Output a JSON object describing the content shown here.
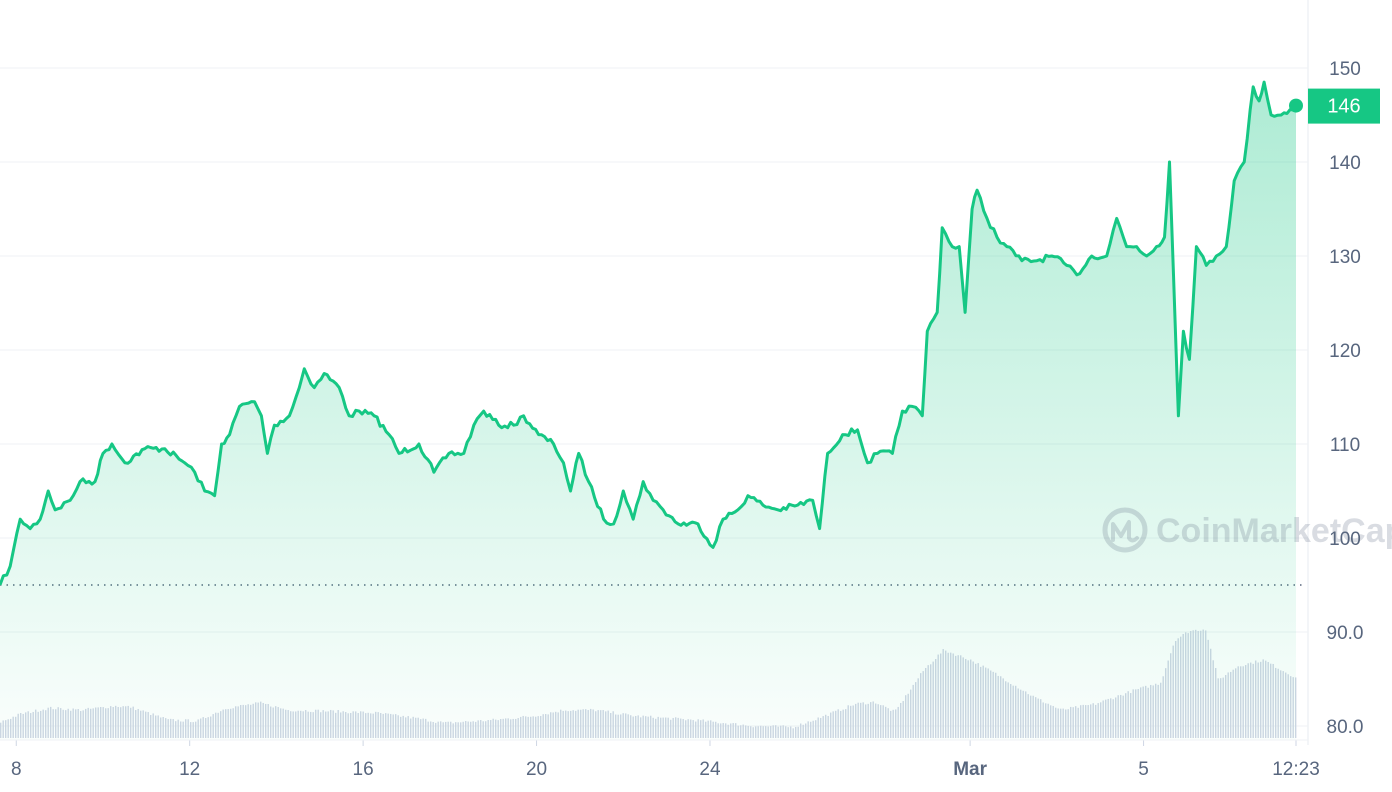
{
  "chart_data": {
    "type": "line",
    "title": "",
    "xlabel": "",
    "ylabel": "",
    "x_range": [
      "2024-02-07T15:00",
      "2024-03-08T12:23"
    ],
    "ylim": [
      78,
      156
    ],
    "y_ticks": [
      "150",
      "140",
      "130",
      "120",
      "110",
      "100",
      "90.0",
      "80.0"
    ],
    "y_tick_values": [
      150,
      140,
      130,
      120,
      110,
      100,
      90,
      80
    ],
    "x_ticks": [
      {
        "label": "8",
        "date": "2024-02-08T00:00",
        "bold": false
      },
      {
        "label": "12",
        "date": "2024-02-12T00:00",
        "bold": false
      },
      {
        "label": "16",
        "date": "2024-02-16T00:00",
        "bold": false
      },
      {
        "label": "20",
        "date": "2024-02-20T00:00",
        "bold": false
      },
      {
        "label": "24",
        "date": "2024-02-24T00:00",
        "bold": false
      },
      {
        "label": "Mar",
        "date": "2024-03-01T00:00",
        "bold": true
      },
      {
        "label": "5",
        "date": "2024-03-05T00:00",
        "bold": false
      },
      {
        "label": "12:23",
        "date": "2024-03-08T12:23",
        "bold": false
      }
    ],
    "grid": true,
    "line_color": "#16c784",
    "reference_line": {
      "value": 95,
      "style": "dotted"
    },
    "current_price_label": "146",
    "current_price": 146,
    "watermark": "CoinMarketCap",
    "series": [
      {
        "points": [
          [
            "2024-02-07T15:00",
            95
          ],
          [
            "2024-02-07T20:40",
            97
          ],
          [
            "2024-02-08T02:12",
            102
          ],
          [
            "2024-02-08T07:43",
            101
          ],
          [
            "2024-02-08T13:14",
            102
          ],
          [
            "2024-02-08T17:40",
            105
          ],
          [
            "2024-02-08T21:31",
            103
          ],
          [
            "2024-02-09T05:48",
            104
          ],
          [
            "2024-02-09T11:18",
            106
          ],
          [
            "2024-02-09T19:35",
            106
          ],
          [
            "2024-02-10T00:00",
            109
          ],
          [
            "2024-02-10T04:58",
            110
          ],
          [
            "2024-02-10T12:09",
            108
          ],
          [
            "2024-02-10T23:10",
            109.5
          ],
          [
            "2024-02-11T10:12",
            109.5
          ],
          [
            "2024-02-11T21:14",
            108
          ],
          [
            "2024-02-12T02:45",
            107
          ],
          [
            "2024-02-12T08:17",
            105
          ],
          [
            "2024-02-12T13:48",
            104.5
          ],
          [
            "2024-02-12T17:40",
            110
          ],
          [
            "2024-02-12T22:04",
            111
          ],
          [
            "2024-02-13T03:35",
            114
          ],
          [
            "2024-02-13T11:52",
            114.5
          ],
          [
            "2024-02-13T15:43",
            113
          ],
          [
            "2024-02-13T19:02",
            109
          ],
          [
            "2024-02-13T22:53",
            112
          ],
          [
            "2024-02-14T07:10",
            113
          ],
          [
            "2024-02-14T12:41",
            116
          ],
          [
            "2024-02-14T15:27",
            118
          ],
          [
            "2024-02-14T20:58",
            116
          ],
          [
            "2024-02-15T02:28",
            117.5
          ],
          [
            "2024-02-15T10:45",
            116
          ],
          [
            "2024-02-15T16:16",
            113
          ],
          [
            "2024-02-15T21:47",
            113.5
          ],
          [
            "2024-02-16T06:04",
            113
          ],
          [
            "2024-02-16T14:21",
            111
          ],
          [
            "2024-02-16T19:52",
            109
          ],
          [
            "2024-02-17T06:53",
            110
          ],
          [
            "2024-02-17T15:10",
            107
          ],
          [
            "2024-02-17T23:27",
            109
          ],
          [
            "2024-02-18T07:44",
            109
          ],
          [
            "2024-02-18T13:15",
            112
          ],
          [
            "2024-02-18T18:46",
            113.5
          ],
          [
            "2024-02-19T03:03",
            112
          ],
          [
            "2024-02-19T11:20",
            112
          ],
          [
            "2024-02-19T16:51",
            113
          ],
          [
            "2024-02-20T01:08",
            111
          ],
          [
            "2024-02-20T09:25",
            110
          ],
          [
            "2024-02-20T14:56",
            108
          ],
          [
            "2024-02-20T18:48",
            105
          ],
          [
            "2024-02-20T23:19",
            109
          ],
          [
            "2024-02-21T04:50",
            106
          ],
          [
            "2024-02-21T13:07",
            102
          ],
          [
            "2024-02-21T18:38",
            101.5
          ],
          [
            "2024-02-22T00:00",
            105
          ],
          [
            "2024-02-22T05:31",
            102
          ],
          [
            "2024-02-22T11:02",
            106
          ],
          [
            "2024-02-22T16:33",
            104
          ],
          [
            "2024-02-22T22:04",
            103
          ],
          [
            "2024-02-23T06:21",
            101.5
          ],
          [
            "2024-02-23T17:23",
            101.5
          ],
          [
            "2024-02-24T01:40",
            99
          ],
          [
            "2024-02-24T07:11",
            102
          ],
          [
            "2024-02-24T15:28",
            103
          ],
          [
            "2024-02-24T20:59",
            104.5
          ],
          [
            "2024-02-25T05:16",
            103.5
          ],
          [
            "2024-02-25T13:33",
            103
          ],
          [
            "2024-02-26T00:34",
            103.5
          ],
          [
            "2024-02-26T08:51",
            104
          ],
          [
            "2024-02-26T12:42",
            101
          ],
          [
            "2024-02-26T17:06",
            109
          ],
          [
            "2024-02-27T01:23",
            111
          ],
          [
            "2024-02-27T09:40",
            111.5
          ],
          [
            "2024-02-27T15:11",
            108
          ],
          [
            "2024-02-27T20:42",
            109
          ],
          [
            "2024-02-28T04:59",
            109
          ],
          [
            "2024-02-28T10:30",
            113.5
          ],
          [
            "2024-02-28T16:01",
            114
          ],
          [
            "2024-02-28T21:32",
            113
          ],
          [
            "2024-02-29T00:17",
            122
          ],
          [
            "2024-02-29T05:48",
            124
          ],
          [
            "2024-02-29T08:33",
            133
          ],
          [
            "2024-02-29T14:04",
            131
          ],
          [
            "2024-02-29T17:56",
            131
          ],
          [
            "2024-02-29T21:14",
            124
          ],
          [
            "2024-03-01T01:05",
            135
          ],
          [
            "2024-03-01T03:51",
            137
          ],
          [
            "2024-03-01T09:22",
            134
          ],
          [
            "2024-03-01T14:53",
            132
          ],
          [
            "2024-03-01T20:23",
            131
          ],
          [
            "2024-03-02T04:40",
            129.5
          ],
          [
            "2024-03-02T12:57",
            129.5
          ],
          [
            "2024-03-02T21:14",
            130
          ],
          [
            "2024-03-03T05:31",
            129
          ],
          [
            "2024-03-03T11:02",
            128
          ],
          [
            "2024-03-03T19:19",
            130
          ],
          [
            "2024-03-04T03:36",
            130
          ],
          [
            "2024-03-04T09:07",
            134
          ],
          [
            "2024-03-04T14:38",
            131
          ],
          [
            "2024-03-04T20:09",
            131
          ],
          [
            "2024-03-05T01:40",
            130
          ],
          [
            "2024-03-05T07:11",
            131
          ],
          [
            "2024-03-05T11:35",
            132
          ],
          [
            "2024-03-05T14:21",
            140
          ],
          [
            "2024-03-05T16:33",
            128
          ],
          [
            "2024-03-05T19:18",
            113
          ],
          [
            "2024-03-05T22:03",
            122
          ],
          [
            "2024-03-06T01:22",
            119
          ],
          [
            "2024-03-06T05:14",
            131
          ],
          [
            "2024-03-06T10:45",
            129
          ],
          [
            "2024-03-06T16:16",
            130
          ],
          [
            "2024-03-06T21:47",
            131
          ],
          [
            "2024-03-07T02:12",
            138
          ],
          [
            "2024-03-07T07:43",
            140
          ],
          [
            "2024-03-07T12:41",
            148
          ],
          [
            "2024-03-07T15:59",
            146.5
          ],
          [
            "2024-03-07T18:45",
            148.5
          ],
          [
            "2024-03-07T22:36",
            145
          ],
          [
            "2024-03-08T04:07",
            145
          ],
          [
            "2024-03-08T12:23",
            146
          ]
        ]
      }
    ],
    "volume_relative_percent": [
      [
        "2024-02-07T15:00",
        16
      ],
      [
        "2024-02-08T02:00",
        24
      ],
      [
        "2024-02-08T18:00",
        30
      ],
      [
        "2024-02-09T12:00",
        28
      ],
      [
        "2024-02-10T06:00",
        32
      ],
      [
        "2024-02-10T15:00",
        31
      ],
      [
        "2024-02-11T12:00",
        18
      ],
      [
        "2024-02-12T04:00",
        17
      ],
      [
        "2024-02-12T20:00",
        30
      ],
      [
        "2024-02-13T15:00",
        35
      ],
      [
        "2024-02-14T06:00",
        28
      ],
      [
        "2024-02-15T03:00",
        27
      ],
      [
        "2024-02-16T07:00",
        25
      ],
      [
        "2024-02-17T04:00",
        20
      ],
      [
        "2024-02-17T21:00",
        15
      ],
      [
        "2024-02-19T00:00",
        18
      ],
      [
        "2024-02-19T22:00",
        22
      ],
      [
        "2024-02-20T15:00",
        28
      ],
      [
        "2024-02-21T08:00",
        28
      ],
      [
        "2024-02-22T06:00",
        22
      ],
      [
        "2024-02-23T15:00",
        18
      ],
      [
        "2024-02-25T00:00",
        12
      ],
      [
        "2024-02-25T22:00",
        11
      ],
      [
        "2024-02-26T15:00",
        22
      ],
      [
        "2024-02-27T08:00",
        34
      ],
      [
        "2024-02-27T19:00",
        36
      ],
      [
        "2024-02-28T06:00",
        26
      ],
      [
        "2024-02-28T22:00",
        68
      ],
      [
        "2024-02-29T09:00",
        88
      ],
      [
        "2024-03-01T00:00",
        78
      ],
      [
        "2024-03-01T14:00",
        64
      ],
      [
        "2024-03-02T12:00",
        40
      ],
      [
        "2024-03-03T02:00",
        28
      ],
      [
        "2024-03-03T21:00",
        34
      ],
      [
        "2024-03-04T19:00",
        48
      ],
      [
        "2024-03-05T09:00",
        55
      ],
      [
        "2024-03-05T17:00",
        98
      ],
      [
        "2024-03-06T01:00",
        107
      ],
      [
        "2024-03-06T10:00",
        109
      ],
      [
        "2024-03-06T17:00",
        58
      ],
      [
        "2024-03-07T04:00",
        72
      ],
      [
        "2024-03-07T18:00",
        78
      ],
      [
        "2024-03-08T12:23",
        60
      ]
    ]
  }
}
